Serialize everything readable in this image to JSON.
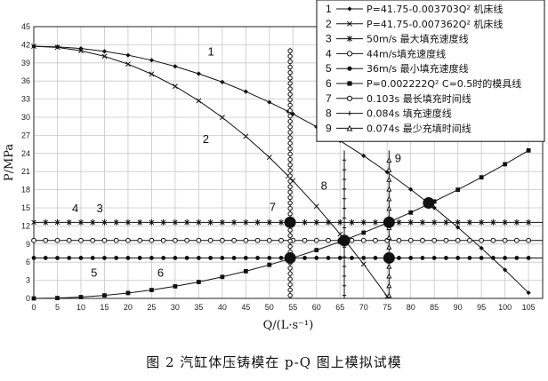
{
  "chart_data": {
    "type": "line",
    "title": "",
    "xlabel": "Q/(L·s⁻¹)",
    "ylabel": "P/MPa",
    "xlim": [
      0,
      108
    ],
    "ylim": [
      0,
      45
    ],
    "xticks": [
      "0",
      "5",
      "10",
      "15",
      "20",
      "25",
      "30",
      "35",
      "40",
      "45",
      "50",
      "55",
      "60",
      "65",
      "70",
      "75",
      "80",
      "85",
      "90",
      "95",
      "100",
      "105"
    ],
    "yticks": [
      "0",
      "3",
      "6",
      "9",
      "12",
      "15",
      "18",
      "21",
      "24",
      "27",
      "30",
      "33",
      "36",
      "39",
      "42",
      "45"
    ],
    "grid": true,
    "legend_position": "top-right",
    "series": [
      {
        "id": "1",
        "name": "P=41.75-0.003703Q² 机床线",
        "marker": "diamond",
        "x": [
          0,
          5,
          10,
          15,
          20,
          25,
          30,
          35,
          40,
          45,
          50,
          54,
          55,
          60,
          65,
          70,
          75,
          80,
          85,
          90,
          95,
          100,
          105
        ],
        "y": [
          41.75,
          41.66,
          41.38,
          40.92,
          40.27,
          39.44,
          38.42,
          37.21,
          35.83,
          34.25,
          32.49,
          30.95,
          30.55,
          28.42,
          26.11,
          23.61,
          20.92,
          18.05,
          15.0,
          11.76,
          8.33,
          4.72,
          0.93
        ]
      },
      {
        "id": "2",
        "name": "P=41.75-0.007362Q² 机床线",
        "marker": "cross",
        "x": [
          0,
          5,
          10,
          15,
          20,
          25,
          30,
          35,
          40,
          45,
          50,
          54,
          55,
          60,
          65,
          70,
          75
        ],
        "y": [
          41.75,
          41.57,
          41.01,
          40.09,
          38.8,
          37.15,
          35.12,
          32.73,
          29.97,
          26.84,
          23.35,
          20.28,
          19.48,
          15.25,
          10.65,
          5.68,
          0.34
        ]
      },
      {
        "id": "3",
        "name": "50m/s 最大填充速度线",
        "marker": "asterisk",
        "y_const": 12.6
      },
      {
        "id": "4",
        "name": "44m/s填充速度线",
        "marker": "circle-open",
        "y_const": 9.6
      },
      {
        "id": "5",
        "name": "36m/s 最小填充速度线",
        "marker": "dot",
        "y_const": 6.7
      },
      {
        "id": "6",
        "name": "P=0.002222Q² C=0.5时的模具线",
        "marker": "square",
        "x": [
          0,
          5,
          10,
          15,
          20,
          25,
          30,
          35,
          40,
          45,
          50,
          55,
          60,
          65,
          70,
          75,
          80,
          85,
          90,
          95,
          100,
          105
        ],
        "y": [
          0,
          0.06,
          0.22,
          0.5,
          0.89,
          1.39,
          2.0,
          2.72,
          3.56,
          4.5,
          5.56,
          6.72,
          8.0,
          9.39,
          10.89,
          12.5,
          14.22,
          16.05,
          18.0,
          20.05,
          22.22,
          24.5
        ]
      },
      {
        "id": "7",
        "name": "0.103s 最长填充时间线",
        "marker": "circle-open",
        "x_const": 54.4
      },
      {
        "id": "8",
        "name": "0.084s 填充速度线",
        "marker": "plus",
        "x_const": 65.9
      },
      {
        "id": "9",
        "name": "0.074s 最少充填时间线",
        "marker": "triangle-open",
        "x_const": 75.4
      }
    ],
    "intersections": [
      {
        "x": 54.4,
        "y": 12.6
      },
      {
        "x": 54.4,
        "y": 6.7
      },
      {
        "x": 65.9,
        "y": 9.6
      },
      {
        "x": 75.4,
        "y": 12.6
      },
      {
        "x": 75.4,
        "y": 6.7
      },
      {
        "x": 83.8,
        "y": 15.8
      }
    ],
    "callouts": [
      {
        "text": "1",
        "x": 37.6,
        "y": 40.2
      },
      {
        "text": "2",
        "x": 36.5,
        "y": 25.7
      },
      {
        "text": "3",
        "x": 14.0,
        "y": 14.3
      },
      {
        "text": "4",
        "x": 8.8,
        "y": 14.3
      },
      {
        "text": "5",
        "x": 12.8,
        "y": 3.6
      },
      {
        "text": "6",
        "x": 26.9,
        "y": 3.6
      },
      {
        "text": "7",
        "x": 50.7,
        "y": 14.5
      },
      {
        "text": "8",
        "x": 61.6,
        "y": 18.0
      },
      {
        "text": "9",
        "x": 77.3,
        "y": 22.6
      }
    ]
  },
  "caption": "图 2   汽缸体压铸模在 p-Q 图上模拟试模"
}
